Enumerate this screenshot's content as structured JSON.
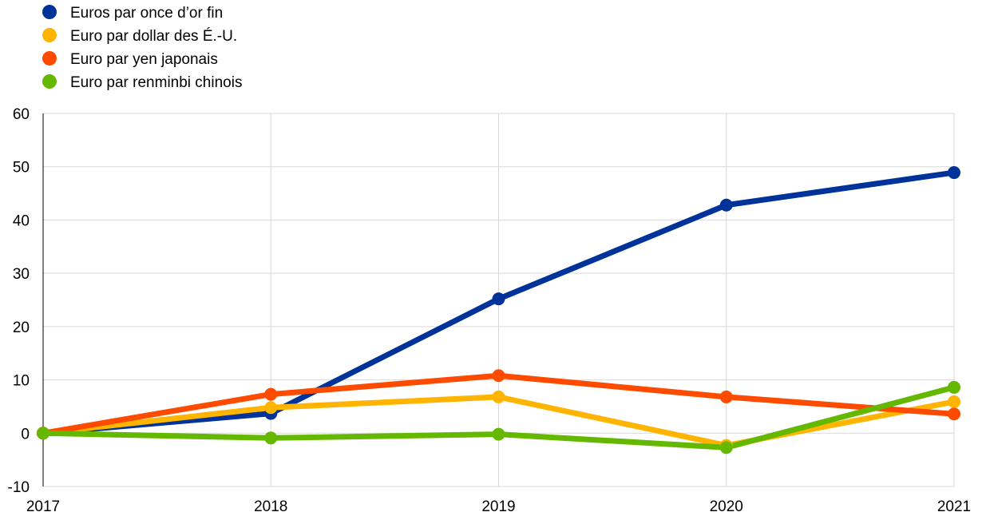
{
  "chart_data": {
    "type": "line",
    "categories": [
      "2017",
      "2018",
      "2019",
      "2020",
      "2021"
    ],
    "series": [
      {
        "name": "Euros par once d’or fin",
        "color": "#003399",
        "values": [
          0,
          3.7,
          25.2,
          42.8,
          48.9
        ]
      },
      {
        "name": "Euro par dollar des É.-U.",
        "color": "#FFB400",
        "values": [
          0,
          4.8,
          6.8,
          -2.3,
          5.9
        ]
      },
      {
        "name": "Euro par yen japonais",
        "color": "#FF4B00",
        "values": [
          0,
          7.3,
          10.8,
          6.8,
          3.6
        ]
      },
      {
        "name": "Euro par renminbi chinois",
        "color": "#65B800",
        "values": [
          0,
          -0.9,
          -0.2,
          -2.7,
          8.6
        ]
      }
    ],
    "ylim": [
      -10,
      60
    ],
    "yticks": [
      "-10",
      "0",
      "10",
      "20",
      "30",
      "40",
      "50",
      "60"
    ],
    "grid": true,
    "legend_position": "top-left"
  }
}
